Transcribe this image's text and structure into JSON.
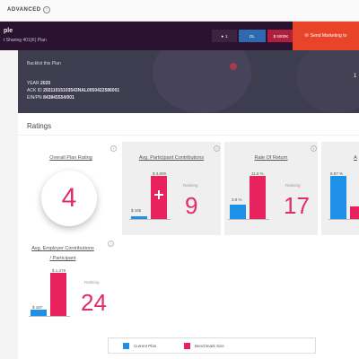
{
  "topbar": {
    "advanced_label": "ADVANCED",
    "info_icon": "i"
  },
  "header": {
    "plan_name": "ple",
    "plan_sub": "t Sharing 401(K) Plan",
    "buttons": [
      {
        "label": "1",
        "icon": "eye-icon"
      },
      {
        "label": "DL",
        "icon": "download-icon"
      },
      {
        "label": "$ 5000K",
        "icon": "dollar-icon"
      },
      {
        "label": "Send Marketing to",
        "icon": "send-icon"
      }
    ]
  },
  "plan_panel": {
    "link": "Backlist this Plan",
    "year_label": "YEAR",
    "year_value": "2020",
    "ack_label": "ACK ID",
    "ack_value": "20211015103543NAL0050422586001",
    "ein_label": "EIN/PN",
    "ein_value": "843845554/001",
    "edge_mark": "1"
  },
  "ratings": {
    "title": "Ratings",
    "overall": {
      "title": "Overall Plan Rating",
      "value": "4"
    },
    "rating_label": "Ranking",
    "metrics": [
      {
        "title": "Avg. Participant Contributions",
        "plan_label": "$ 185",
        "bench_label": "$ 3,809",
        "plan_value": 185,
        "bench_value": 3809,
        "rating": "9"
      },
      {
        "title": "Rate Of Return",
        "plan_label": "3.9 %",
        "bench_label": "11.6 %",
        "plan_value": 3.9,
        "bench_value": 11.6,
        "rating": "17"
      },
      {
        "title": "A",
        "plan_label": "8.87 %",
        "bench_label": "",
        "plan_value": 8.87,
        "bench_value": 2.5,
        "rating": ""
      },
      {
        "title": "Avg. Employer Contributions / Participant",
        "plan_label": "$ 187",
        "bench_label": "$ 1,378",
        "plan_value": 187,
        "bench_value": 1378,
        "rating": "24"
      }
    ]
  },
  "legend": {
    "current": "Current Plan",
    "benchmark": "Benchmark Size"
  },
  "colors": {
    "current": "#1e90e8",
    "benchmark": "#e8225e",
    "rating": "#e02c6a"
  }
}
